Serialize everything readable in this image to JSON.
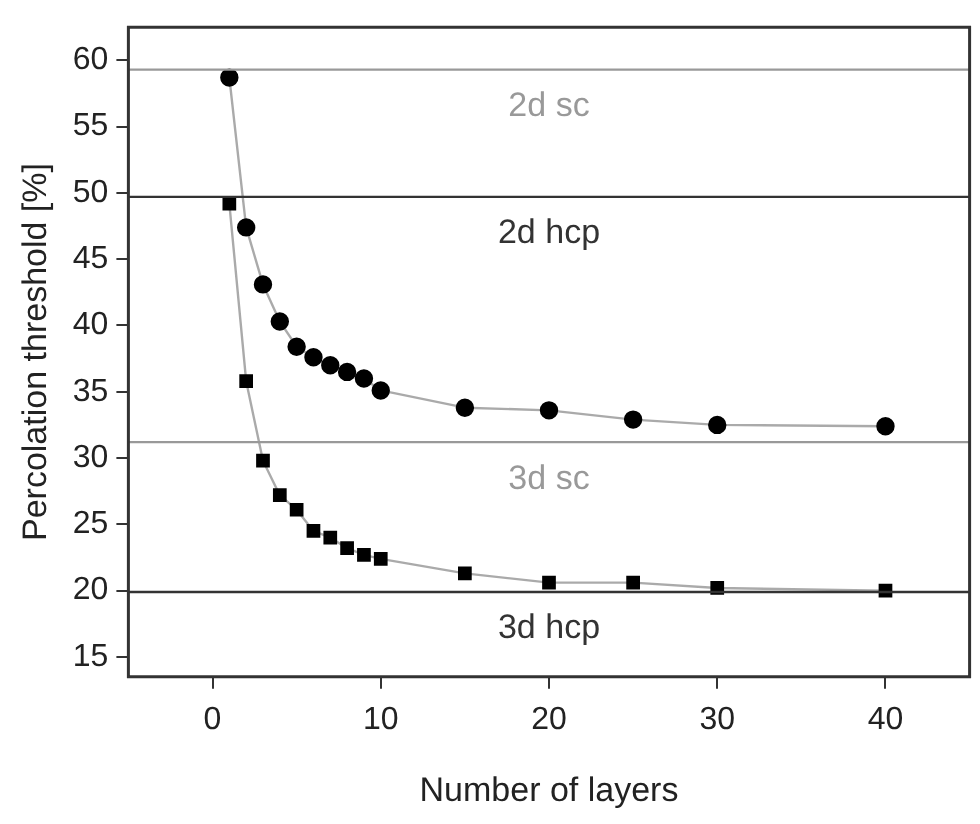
{
  "chart_data": {
    "type": "line",
    "xlabel": "Number of layers",
    "ylabel": "Percolation threshold [%]",
    "xlim": [
      -5,
      45
    ],
    "xticks": [
      0,
      10,
      20,
      30,
      40
    ],
    "ylim": [
      13.5,
      62.5
    ],
    "yticks": [
      15,
      20,
      25,
      30,
      35,
      40,
      45,
      50,
      55,
      60
    ],
    "grid": false,
    "legend": false,
    "line_style": "solid",
    "series": [
      {
        "marker": "circle",
        "color": "#000000",
        "x": [
          1,
          2,
          3,
          4,
          5,
          6,
          7,
          8,
          9,
          10,
          15,
          20,
          25,
          30,
          40
        ],
        "values": [
          58.7,
          47.4,
          43.1,
          40.3,
          38.4,
          37.6,
          37.0,
          36.5,
          36.0,
          35.1,
          33.8,
          33.6,
          32.9,
          32.5,
          32.4
        ]
      },
      {
        "marker": "square",
        "color": "#000000",
        "x": [
          1,
          2,
          3,
          4,
          5,
          6,
          7,
          8,
          9,
          10,
          15,
          20,
          25,
          30,
          40
        ],
        "values": [
          49.2,
          35.8,
          29.8,
          27.2,
          26.1,
          24.5,
          24.0,
          23.2,
          22.7,
          22.4,
          21.3,
          20.6,
          20.6,
          20.2,
          20.0
        ]
      }
    ],
    "ref_lines": [
      {
        "axis": "y",
        "value": 59.3,
        "label": "2d sc",
        "color": "#999999"
      },
      {
        "axis": "y",
        "value": 49.7,
        "label": "2d hcp",
        "color": "#333333"
      },
      {
        "axis": "y",
        "value": 31.2,
        "label": "3d sc",
        "color": "#999999"
      },
      {
        "axis": "y",
        "value": 19.9,
        "label": "3d hcp",
        "color": "#333333"
      }
    ]
  }
}
